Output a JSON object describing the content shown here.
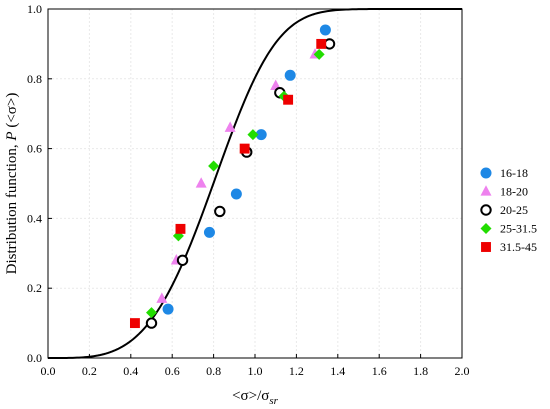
{
  "chart_data": {
    "type": "scatter",
    "xlabel_html": "<σ>/σ<sub>sr</sub>",
    "xlabel_parts": {
      "main": "<σ>/σ",
      "sub": "sr"
    },
    "ylabel_parts": {
      "main": "Distribution function, ",
      "italic": "P",
      "tail": " (<σ>)"
    },
    "xlim": [
      0.0,
      2.0
    ],
    "ylim": [
      0.0,
      1.0
    ],
    "xticks": [
      "0.0",
      "0.2",
      "0.4",
      "0.6",
      "0.8",
      "1.0",
      "1.2",
      "1.4",
      "1.6",
      "1.8",
      "2.0"
    ],
    "yticks": [
      "0.0",
      "0.2",
      "0.4",
      "0.6",
      "0.8",
      "1.0"
    ],
    "grid": true,
    "legend_position": "right",
    "fit_curve": {
      "type": "cdf-like",
      "color": "#000000"
    },
    "series": [
      {
        "name": "16-18",
        "marker": "circle",
        "color": "#1e88e5",
        "filled": true,
        "points": [
          [
            0.58,
            0.14
          ],
          [
            0.78,
            0.36
          ],
          [
            0.91,
            0.47
          ],
          [
            1.03,
            0.64
          ],
          [
            1.17,
            0.81
          ],
          [
            1.34,
            0.94
          ]
        ]
      },
      {
        "name": "18-20",
        "marker": "triangle",
        "color": "#ee82ee",
        "filled": true,
        "points": [
          [
            0.55,
            0.17
          ],
          [
            0.62,
            0.28
          ],
          [
            0.74,
            0.5
          ],
          [
            0.88,
            0.66
          ],
          [
            1.1,
            0.78
          ],
          [
            1.29,
            0.87
          ]
        ]
      },
      {
        "name": "20-25",
        "marker": "circle",
        "color": "#000000",
        "filled": false,
        "points": [
          [
            0.5,
            0.1
          ],
          [
            0.65,
            0.28
          ],
          [
            0.83,
            0.42
          ],
          [
            0.96,
            0.59
          ],
          [
            1.12,
            0.76
          ],
          [
            1.36,
            0.9
          ]
        ]
      },
      {
        "name": "25-31.5",
        "marker": "diamond",
        "color": "#22dd00",
        "filled": true,
        "points": [
          [
            0.5,
            0.13
          ],
          [
            0.63,
            0.35
          ],
          [
            0.8,
            0.55
          ],
          [
            0.99,
            0.64
          ],
          [
            1.14,
            0.75
          ],
          [
            1.31,
            0.87
          ]
        ]
      },
      {
        "name": "31.5-45",
        "marker": "square",
        "color": "#ee0000",
        "filled": true,
        "points": [
          [
            0.42,
            0.1
          ],
          [
            0.64,
            0.37
          ],
          [
            0.95,
            0.6
          ],
          [
            1.16,
            0.74
          ],
          [
            1.32,
            0.9
          ]
        ]
      }
    ]
  }
}
